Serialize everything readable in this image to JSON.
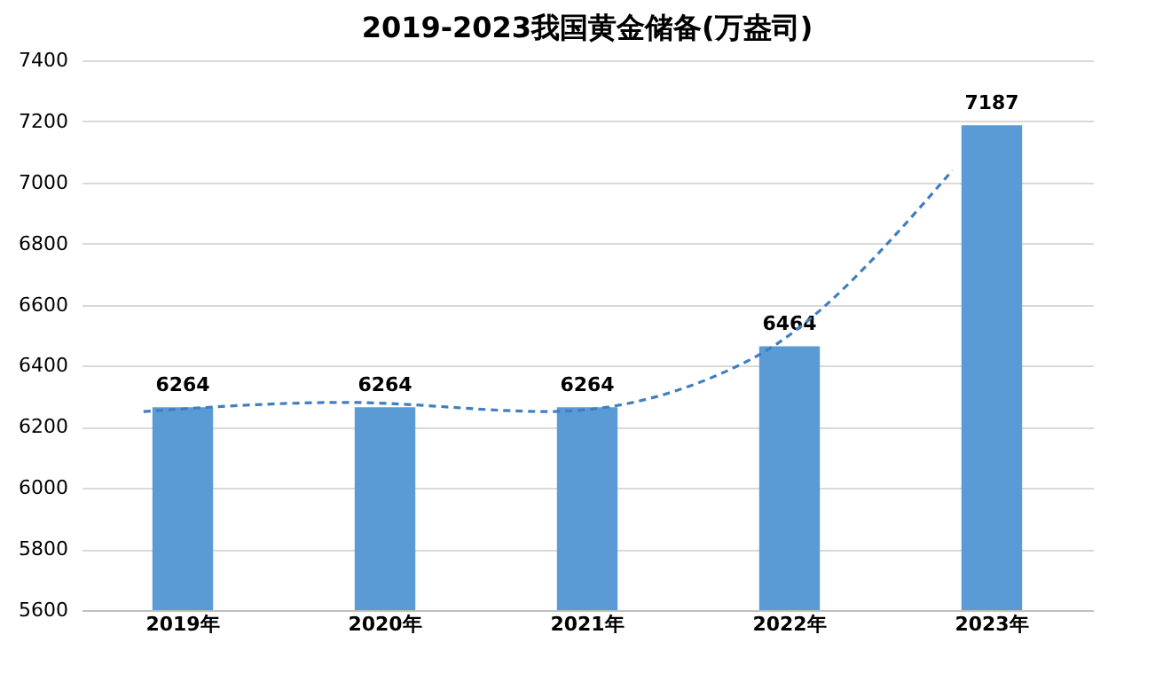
{
  "chart_data": {
    "type": "bar",
    "title": "2019-2023我国黄金储备(万盎司)",
    "categories": [
      "2019年",
      "2020年",
      "2021年",
      "2022年",
      "2023年"
    ],
    "series": [
      {
        "color": "#5b9bd5",
        "values": [
          6264,
          6264,
          6264,
          6464,
          7187
        ],
        "value_labels": [
          "6264",
          "6264",
          "6264",
          "6464",
          "7187"
        ]
      },
      {
        "type": "line",
        "color": "#3f7fc0",
        "line_style": "dashed",
        "values": [
          6250,
          6280,
          6250,
          6420,
          7040
        ]
      }
    ],
    "ylim": [
      5600,
      7400
    ],
    "yticks": [
      5600,
      5800,
      6000,
      6200,
      6400,
      6600,
      6800,
      7000,
      7200,
      7400
    ],
    "grid": "y"
  }
}
